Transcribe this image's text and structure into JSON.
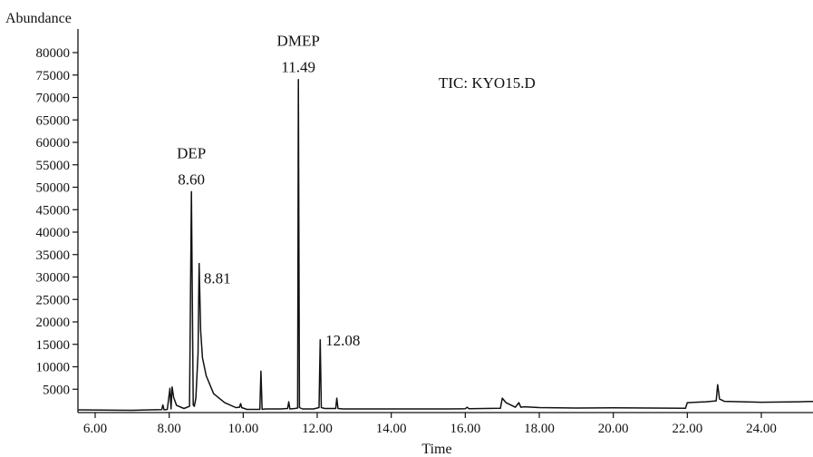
{
  "chart_data": {
    "type": "line",
    "title": "",
    "xlabel": "Time",
    "ylabel": "Abundance",
    "annotation": "TIC: KYO15.D",
    "xlim": [
      5.5,
      25.6
    ],
    "ylim": [
      0,
      83000
    ],
    "x_ticks": [
      6,
      8,
      10,
      12,
      14,
      16,
      18,
      20,
      22,
      24
    ],
    "x_tick_labels": [
      "6.00",
      "8.00",
      "10.00",
      "12.00",
      "14.00",
      "16.00",
      "18.00",
      "20.00",
      "22.00",
      "24.00"
    ],
    "y_ticks": [
      5000,
      10000,
      15000,
      20000,
      25000,
      30000,
      35000,
      40000,
      45000,
      50000,
      55000,
      60000,
      65000,
      70000,
      75000,
      80000
    ],
    "y_tick_labels": [
      "5000",
      "10000",
      "15000",
      "20000",
      "25000",
      "30000",
      "35000",
      "40000",
      "45000",
      "50000",
      "55000",
      "60000",
      "65000",
      "70000",
      "75000",
      "80000"
    ],
    "grid": false,
    "series": [
      {
        "x": [
          5.55,
          6.2,
          7.0,
          7.5,
          7.8,
          7.83,
          7.86,
          7.95,
          8.02,
          8.05,
          8.08,
          8.12,
          8.2,
          8.4,
          8.55,
          8.6,
          8.65,
          8.68,
          8.72,
          8.78,
          8.81,
          8.85,
          8.9,
          9.0,
          9.2,
          9.5,
          9.8,
          9.9,
          9.93,
          9.96,
          10.1,
          10.45,
          10.48,
          10.51,
          10.6,
          11.0,
          11.2,
          11.23,
          11.26,
          11.4,
          11.47,
          11.49,
          11.52,
          11.6,
          11.9,
          12.05,
          12.08,
          12.11,
          12.2,
          12.5,
          12.53,
          12.56,
          12.7,
          13.5,
          14.5,
          15.5,
          16.0,
          16.05,
          16.1,
          16.5,
          16.95,
          17.0,
          17.1,
          17.35,
          17.45,
          17.5,
          17.6,
          18.0,
          19.0,
          20.0,
          21.0,
          21.95,
          22.0,
          22.5,
          22.78,
          22.82,
          22.87,
          23.0,
          24.0,
          25.0,
          25.6
        ],
        "y": [
          400,
          350,
          300,
          400,
          450,
          1500,
          400,
          500,
          5200,
          600,
          5500,
          3200,
          1400,
          700,
          1200,
          49000,
          1500,
          1200,
          3000,
          13000,
          33000,
          18000,
          12000,
          8000,
          4000,
          2000,
          900,
          1000,
          1800,
          900,
          500,
          500,
          9000,
          500,
          600,
          600,
          700,
          2200,
          600,
          700,
          800,
          74000,
          900,
          600,
          600,
          900,
          16000,
          900,
          700,
          700,
          3000,
          700,
          600,
          600,
          600,
          600,
          650,
          1000,
          650,
          700,
          750,
          3000,
          2000,
          1000,
          2000,
          1000,
          1100,
          900,
          800,
          850,
          800,
          750,
          2000,
          2200,
          2400,
          6000,
          2800,
          2300,
          2100,
          2200,
          2300
        ]
      }
    ],
    "peak_labels": [
      {
        "name": "DEP",
        "rt": "8.60",
        "x": 8.6,
        "y": 49000
      },
      {
        "name": "",
        "rt": "8.81",
        "x": 8.81,
        "y": 33000
      },
      {
        "name": "DMEP",
        "rt": "11.49",
        "x": 11.49,
        "y": 74000
      },
      {
        "name": "",
        "rt": "12.08",
        "x": 12.08,
        "y": 16000
      }
    ]
  }
}
